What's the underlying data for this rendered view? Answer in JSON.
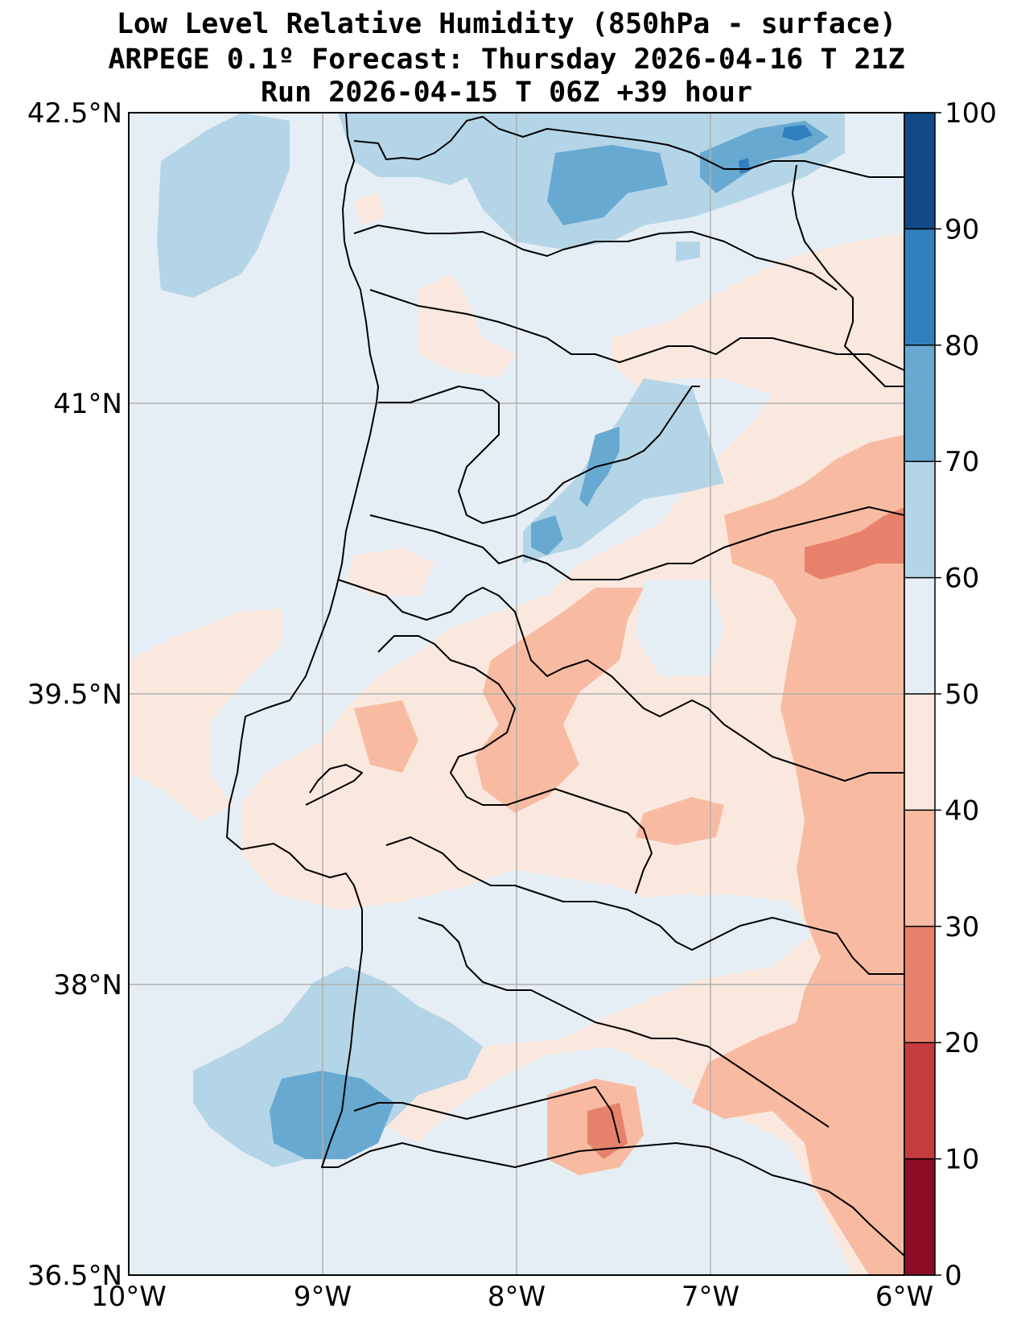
{
  "title": {
    "line1": "Low Level Relative Humidity (850hPa - surface)",
    "line2": "ARPEGE 0.1º Forecast: Thursday 2026-04-16 T 21Z",
    "line3": "Run 2026-04-15 T 06Z +39 hour"
  },
  "map": {
    "lat_range": [
      36.5,
      42.5
    ],
    "lon_range": [
      -10,
      -6
    ],
    "lat_ticks": [
      {
        "value": 42.5,
        "label": "42.5°N"
      },
      {
        "value": 41,
        "label": "41°N"
      },
      {
        "value": 39.5,
        "label": "39.5°N"
      },
      {
        "value": 38,
        "label": "38°N"
      },
      {
        "value": 36.5,
        "label": "36.5°N"
      }
    ],
    "lon_ticks": [
      {
        "value": -10,
        "label": "10°W"
      },
      {
        "value": -9,
        "label": "9°W"
      },
      {
        "value": -8,
        "label": "8°W"
      },
      {
        "value": -7,
        "label": "7°W"
      },
      {
        "value": -6,
        "label": "6°W"
      }
    ],
    "gridlines": true
  },
  "colorbar": {
    "levels": [
      0,
      10,
      20,
      30,
      40,
      50,
      60,
      70,
      80,
      90,
      100
    ],
    "labels": [
      "0",
      "10",
      "20",
      "30",
      "40",
      "50",
      "60",
      "70",
      "80",
      "90",
      "100"
    ],
    "colors": [
      "#8c0d25",
      "#c43c3c",
      "#e7816b",
      "#f8bba1",
      "#fae8de",
      "#e6eef5",
      "#b4d5e7",
      "#67a9d1",
      "#3180bd",
      "#124a87"
    ]
  }
}
